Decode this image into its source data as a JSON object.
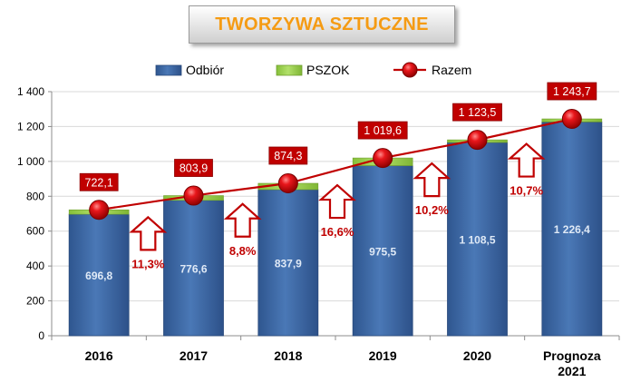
{
  "chart_data": {
    "type": "bar",
    "title": "TWORZYWA SZTUCZNE",
    "categories": [
      "2016",
      "2017",
      "2018",
      "2019",
      "2020",
      "Prognoza 2021"
    ],
    "series": [
      {
        "name": "Odbiór",
        "kind": "stacked-bar",
        "color": "#3f6aa6",
        "values": [
          696.8,
          776.6,
          837.9,
          975.5,
          1108.5,
          1226.4
        ],
        "labels": [
          "696,8",
          "776,6",
          "837,9",
          "975,5",
          "1 108,5",
          "1 226,4"
        ]
      },
      {
        "name": "PSZOK",
        "kind": "stacked-bar",
        "color": "#9bd048",
        "values": [
          25.3,
          27.3,
          36.4,
          44.1,
          15.0,
          17.3
        ]
      },
      {
        "name": "Razem",
        "kind": "line",
        "color": "#c00000",
        "values": [
          722.1,
          803.9,
          874.3,
          1019.6,
          1123.5,
          1243.7
        ],
        "labels": [
          "722,1",
          "803,9",
          "874,3",
          "1 019,6",
          "1 123,5",
          "1 243,7"
        ]
      }
    ],
    "growth_labels": [
      "11,3%",
      "8,8%",
      "16,6%",
      "10,2%",
      "10,7%"
    ],
    "ylim": [
      0,
      1400
    ],
    "yticks": [
      0,
      200,
      400,
      600,
      800,
      1000,
      1200,
      1400
    ],
    "ytick_labels": [
      "0",
      "200",
      "400",
      "600",
      "800",
      "1 000",
      "1 200",
      "1 400"
    ],
    "grid": true,
    "legend_position": "top",
    "xlabel": "",
    "ylabel": ""
  }
}
